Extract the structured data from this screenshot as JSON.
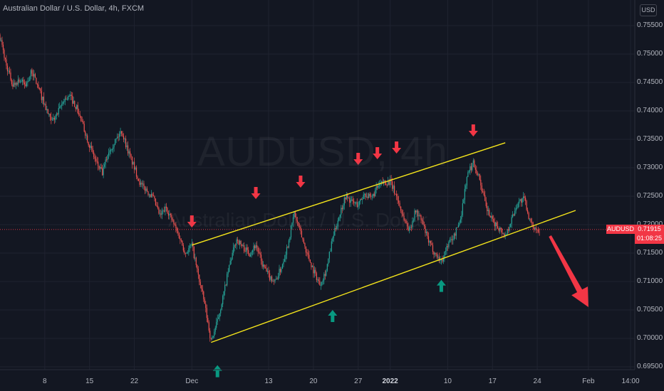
{
  "header": {
    "title": "Australian Dollar / U.S. Dollar, 4h, FXCM",
    "currency_button": "USD"
  },
  "watermark": {
    "symbol_interval": "AUDUSD, 4h",
    "description": "Australian Dollar / U.S. Dollar"
  },
  "price_badge": {
    "symbol": "AUDUSD",
    "price": "0.71915",
    "countdown": "01:08:25"
  },
  "colors": {
    "background": "#131722",
    "grid": "#1f2330",
    "up_candle": "#26a69a",
    "down_candle": "#ef5350",
    "channel_line": "#f5e51b",
    "down_arrow": "#f23645",
    "up_arrow": "#089981",
    "price_line": "#f23645",
    "axis_text": "#b2b5be"
  },
  "chart_data": {
    "type": "candlestick",
    "symbol": "AUDUSD",
    "interval": "4h",
    "yaxis": {
      "ticks": [
        "0.75500",
        "0.75000",
        "0.74500",
        "0.74000",
        "0.73500",
        "0.73000",
        "0.72500",
        "0.72000",
        "0.71500",
        "0.71000",
        "0.70500",
        "0.70000",
        "0.69500"
      ],
      "ylim": [
        0.6945,
        0.7595
      ]
    },
    "xaxis": {
      "ticks": [
        {
          "label": "8",
          "date": "2021-11-08"
        },
        {
          "label": "15",
          "date": "2021-11-15"
        },
        {
          "label": "22",
          "date": "2021-11-22"
        },
        {
          "label": "Dec",
          "date": "2021-12-01"
        },
        {
          "label": "13",
          "date": "2021-12-13"
        },
        {
          "label": "20",
          "date": "2021-12-20"
        },
        {
          "label": "27",
          "date": "2021-12-27"
        },
        {
          "label": "2022",
          "date": "2022-01-01",
          "bold": true
        },
        {
          "label": "10",
          "date": "2022-01-10"
        },
        {
          "label": "17",
          "date": "2022-01-17"
        },
        {
          "label": "24",
          "date": "2022-01-24"
        },
        {
          "label": "Feb",
          "date": "2022-02-01"
        },
        {
          "label": "14:00",
          "date": "2022-02-07T14:00"
        }
      ]
    },
    "price_path": [
      [
        "2021-11-01",
        0.753
      ],
      [
        "2021-11-02",
        0.748
      ],
      [
        "2021-11-03",
        0.7445
      ],
      [
        "2021-11-04",
        0.7455
      ],
      [
        "2021-11-05",
        0.7445
      ],
      [
        "2021-11-06",
        0.747
      ],
      [
        "2021-11-08",
        0.741
      ],
      [
        "2021-11-09",
        0.738
      ],
      [
        "2021-11-10",
        0.7395
      ],
      [
        "2021-11-11",
        0.742
      ],
      [
        "2021-11-12",
        0.7425
      ],
      [
        "2021-11-13",
        0.7405
      ],
      [
        "2021-11-15",
        0.734
      ],
      [
        "2021-11-16",
        0.731
      ],
      [
        "2021-11-17",
        0.729
      ],
      [
        "2021-11-18",
        0.733
      ],
      [
        "2021-11-20",
        0.7365
      ],
      [
        "2021-11-21",
        0.733
      ],
      [
        "2021-11-22",
        0.73
      ],
      [
        "2021-11-23",
        0.727
      ],
      [
        "2021-11-24",
        0.726
      ],
      [
        "2021-11-25",
        0.7245
      ],
      [
        "2021-11-26",
        0.7215
      ],
      [
        "2021-11-27",
        0.723
      ],
      [
        "2021-11-28",
        0.7205
      ],
      [
        "2021-11-29",
        0.718
      ],
      [
        "2021-11-30",
        0.715
      ],
      [
        "2021-12-01",
        0.7165
      ],
      [
        "2021-12-02",
        0.711
      ],
      [
        "2021-12-03",
        0.706
      ],
      [
        "2021-12-04",
        0.6995
      ],
      [
        "2021-12-05",
        0.703
      ],
      [
        "2021-12-06",
        0.708
      ],
      [
        "2021-12-07",
        0.7135
      ],
      [
        "2021-12-08",
        0.7175
      ],
      [
        "2021-12-09",
        0.716
      ],
      [
        "2021-12-10",
        0.715
      ],
      [
        "2021-12-11",
        0.7165
      ],
      [
        "2021-12-12",
        0.713
      ],
      [
        "2021-12-13",
        0.711
      ],
      [
        "2021-12-14",
        0.71
      ],
      [
        "2021-12-15",
        0.7125
      ],
      [
        "2021-12-16",
        0.7165
      ],
      [
        "2021-12-17",
        0.722
      ],
      [
        "2021-12-18",
        0.7185
      ],
      [
        "2021-12-19",
        0.715
      ],
      [
        "2021-12-20",
        0.712
      ],
      [
        "2021-12-21",
        0.7095
      ],
      [
        "2021-12-22",
        0.712
      ],
      [
        "2021-12-23",
        0.7175
      ],
      [
        "2021-12-24",
        0.7215
      ],
      [
        "2021-12-25",
        0.725
      ],
      [
        "2021-12-26",
        0.724
      ],
      [
        "2021-12-27",
        0.7235
      ],
      [
        "2021-12-28",
        0.7255
      ],
      [
        "2021-12-29",
        0.7245
      ],
      [
        "2021-12-30",
        0.7265
      ],
      [
        "2021-12-31",
        0.7275
      ],
      [
        "2022-01-01",
        0.7275
      ],
      [
        "2022-01-02",
        0.725
      ],
      [
        "2022-01-03",
        0.7215
      ],
      [
        "2022-01-04",
        0.719
      ],
      [
        "2022-01-05",
        0.7225
      ],
      [
        "2022-01-06",
        0.7205
      ],
      [
        "2022-01-07",
        0.717
      ],
      [
        "2022-01-08",
        0.715
      ],
      [
        "2022-01-09",
        0.7135
      ],
      [
        "2022-01-10",
        0.7165
      ],
      [
        "2022-01-11",
        0.718
      ],
      [
        "2022-01-12",
        0.721
      ],
      [
        "2022-01-13",
        0.7285
      ],
      [
        "2022-01-14",
        0.731
      ],
      [
        "2022-01-15",
        0.728
      ],
      [
        "2022-01-16",
        0.723
      ],
      [
        "2022-01-17",
        0.7205
      ],
      [
        "2022-01-18",
        0.7195
      ],
      [
        "2022-01-19",
        0.718
      ],
      [
        "2022-01-20",
        0.721
      ],
      [
        "2022-01-21",
        0.724
      ],
      [
        "2022-01-22",
        0.7245
      ],
      [
        "2022-01-23",
        0.72
      ],
      [
        "2022-01-24",
        0.7192
      ]
    ],
    "annotations": {
      "channel_upper": [
        [
          "2021-12-01",
          0.7164
        ],
        [
          "2022-01-19",
          0.7344
        ]
      ],
      "channel_lower": [
        [
          "2021-12-04",
          0.6993
        ],
        [
          "2022-01-30",
          0.7225
        ]
      ],
      "sell_arrows": [
        [
          "2021-12-01",
          0.7195
        ],
        [
          "2021-12-11",
          0.7245
        ],
        [
          "2021-12-18",
          0.7265
        ],
        [
          "2021-12-27",
          0.7305
        ],
        [
          "2021-12-30",
          0.7315
        ],
        [
          "2022-01-02",
          0.7325
        ],
        [
          "2022-01-14",
          0.7355
        ]
      ],
      "buy_arrows": [
        [
          "2021-12-05",
          0.6953
        ],
        [
          "2021-12-23",
          0.705
        ],
        [
          "2022-01-09",
          0.7103
        ]
      ],
      "forecast_arrow": {
        "from": [
          "2022-01-26",
          0.718
        ],
        "to": [
          "2022-02-01",
          0.7055
        ]
      }
    },
    "last_price": 0.71915,
    "grid": true
  }
}
